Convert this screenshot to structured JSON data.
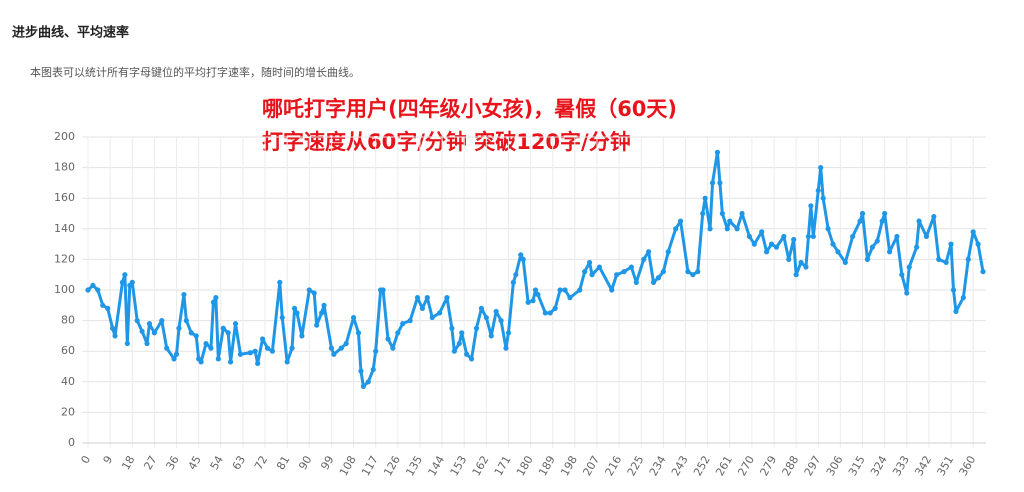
{
  "header": {
    "title": "进步曲线、平均速率",
    "description": "本图表可以统计所有字母键位的平均打字速率，随时间的增长曲线。"
  },
  "chart_data": {
    "type": "line",
    "annotation": [
      "哪吒打字用户(四年级小女孩)，暑假（60天)",
      "打字速度从60字/分钟 突破120字/分钟"
    ],
    "x": [
      0,
      2,
      4,
      6,
      8,
      10,
      11,
      14,
      15,
      16,
      17,
      18,
      20,
      22,
      24,
      25,
      27,
      30,
      32,
      35,
      36,
      37,
      39,
      40,
      42,
      44,
      45,
      46,
      48,
      50,
      51,
      52,
      53,
      55,
      57,
      58,
      60,
      62,
      66,
      68,
      69,
      71,
      73,
      75,
      78,
      79,
      81,
      83,
      84,
      85,
      87,
      90,
      92,
      93,
      95,
      96,
      99,
      100,
      103,
      105,
      108,
      110,
      111,
      112,
      114,
      116,
      117,
      119,
      120,
      122,
      124,
      126,
      128,
      131,
      134,
      136,
      138,
      140,
      143,
      146,
      148,
      149,
      151,
      152,
      154,
      156,
      158,
      160,
      162,
      164,
      166,
      168,
      170,
      171,
      173,
      174,
      176,
      177,
      179,
      181,
      182,
      183,
      186,
      188,
      190,
      192,
      194,
      196,
      200,
      202,
      204,
      205,
      208,
      213,
      215,
      218,
      221,
      223,
      226,
      228,
      230,
      232,
      234,
      236,
      239,
      241,
      244,
      246,
      248,
      250,
      251,
      253,
      254,
      256,
      257,
      258,
      260,
      261,
      264,
      266,
      269,
      271,
      274,
      276,
      278,
      280,
      283,
      285,
      287,
      288,
      290,
      292,
      293,
      294,
      295,
      297,
      298,
      299,
      301,
      303,
      305,
      308,
      311,
      314,
      315,
      317,
      319,
      321,
      323,
      324,
      326,
      329,
      331,
      333,
      334,
      337,
      338,
      341,
      344,
      346,
      349,
      351,
      352,
      353,
      356,
      358,
      360,
      362,
      364
    ],
    "series": [
      {
        "color": "#1f97e6",
        "values": [
          100,
          103,
          100,
          90,
          88,
          75,
          70,
          105,
          110,
          65,
          103,
          105,
          80,
          73,
          65,
          78,
          72,
          80,
          62,
          55,
          58,
          75,
          97,
          80,
          72,
          70,
          55,
          53,
          65,
          62,
          92,
          95,
          55,
          75,
          72,
          53,
          78,
          58,
          59,
          60,
          52,
          68,
          62,
          60,
          105,
          82,
          53,
          62,
          88,
          85,
          70,
          100,
          98,
          77,
          85,
          90,
          62,
          58,
          62,
          65,
          82,
          72,
          47,
          37,
          40,
          48,
          60,
          100,
          100,
          68,
          62,
          72,
          78,
          80,
          95,
          88,
          95,
          82,
          85,
          95,
          75,
          60,
          65,
          72,
          58,
          55,
          75,
          88,
          82,
          70,
          86,
          80,
          62,
          72,
          105,
          110,
          123,
          120,
          92,
          93,
          100,
          97,
          85,
          85,
          88,
          100,
          100,
          95,
          100,
          112,
          118,
          110,
          115,
          100,
          110,
          112,
          115,
          105,
          120,
          125,
          105,
          108,
          112,
          125,
          140,
          145,
          112,
          110,
          112,
          150,
          160,
          140,
          170,
          190,
          170,
          150,
          140,
          145,
          140,
          150,
          135,
          130,
          138,
          125,
          130,
          128,
          135,
          120,
          133,
          110,
          118,
          115,
          135,
          155,
          135,
          165,
          180,
          160,
          140,
          130,
          125,
          118,
          135,
          145,
          150,
          120,
          128,
          132,
          145,
          150,
          125,
          135,
          110,
          98,
          115,
          128,
          145,
          135,
          148,
          120,
          118,
          130,
          100,
          86,
          95,
          120,
          138,
          130,
          112
        ]
      }
    ],
    "xlim": [
      0,
      364
    ],
    "xticks": [
      0,
      9,
      18,
      27,
      36,
      45,
      54,
      63,
      72,
      81,
      90,
      99,
      108,
      117,
      126,
      135,
      144,
      153,
      162,
      171,
      180,
      189,
      198,
      207,
      216,
      225,
      234,
      243,
      252,
      261,
      270,
      279,
      288,
      297,
      306,
      315,
      324,
      333,
      342,
      351,
      360
    ],
    "ylim": [
      0,
      200
    ],
    "yticks": [
      0,
      20,
      40,
      60,
      80,
      100,
      120,
      140,
      160,
      180,
      200
    ],
    "grid": true
  }
}
